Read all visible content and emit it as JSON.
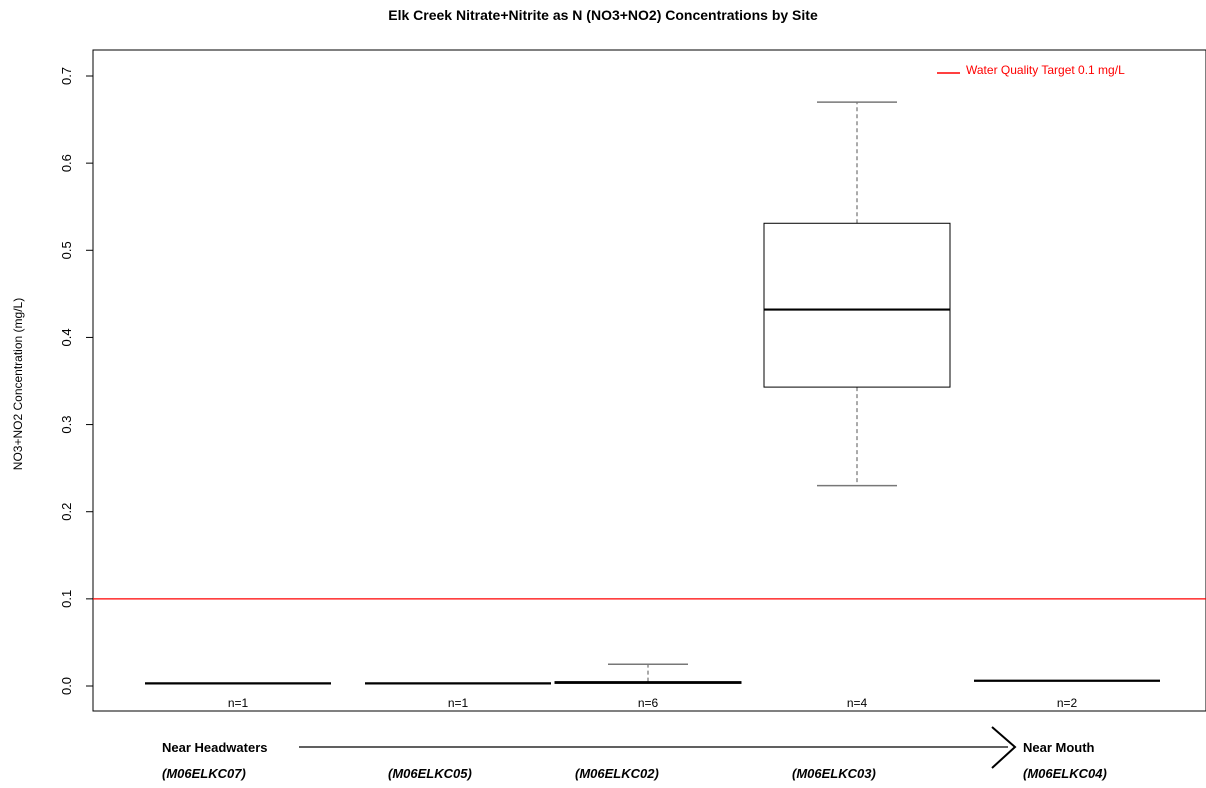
{
  "chart_data": {
    "type": "box",
    "title": "Elk Creek Nitrate+Nitrite as N (NO3+NO2) Concentrations by Site",
    "ylabel": "NO3+NO2 Concentration (mg/L)",
    "ylim": [
      -0.02,
      0.73
    ],
    "yticks": [
      0.0,
      0.1,
      0.2,
      0.3,
      0.4,
      0.5,
      0.6,
      0.7
    ],
    "ytick_labels": [
      "0.0",
      "0.1",
      "0.2",
      "0.3",
      "0.4",
      "0.5",
      "0.6",
      "0.7"
    ],
    "grid": false,
    "categories": [
      "(M06ELKC07)",
      "(M06ELKC05)",
      "(M06ELKC02)",
      "(M06ELKC03)",
      "(M06ELKC04)"
    ],
    "counts": [
      "n=1",
      "n=1",
      "n=6",
      "n=4",
      "n=2"
    ],
    "boxes": [
      {
        "site": "(M06ELKC07)",
        "min": 0.003,
        "q1": 0.003,
        "median": 0.003,
        "q3": 0.003,
        "max": 0.003
      },
      {
        "site": "(M06ELKC05)",
        "min": 0.003,
        "q1": 0.003,
        "median": 0.003,
        "q3": 0.003,
        "max": 0.003
      },
      {
        "site": "(M06ELKC02)",
        "min": 0.003,
        "q1": 0.003,
        "median": 0.004,
        "q3": 0.005,
        "max": 0.025
      },
      {
        "site": "(M06ELKC03)",
        "min": 0.23,
        "q1": 0.343,
        "median": 0.432,
        "q3": 0.531,
        "max": 0.67
      },
      {
        "site": "(M06ELKC04)",
        "min": 0.006,
        "q1": 0.006,
        "median": 0.006,
        "q3": 0.006,
        "max": 0.006
      }
    ],
    "reference_line": {
      "value": 0.1,
      "label": "Water Quality Target 0.1 mg/L",
      "color": "#ff0000"
    },
    "legend_position": "top-right",
    "direction": {
      "start": "Near Headwaters",
      "end": "Near Mouth"
    }
  }
}
